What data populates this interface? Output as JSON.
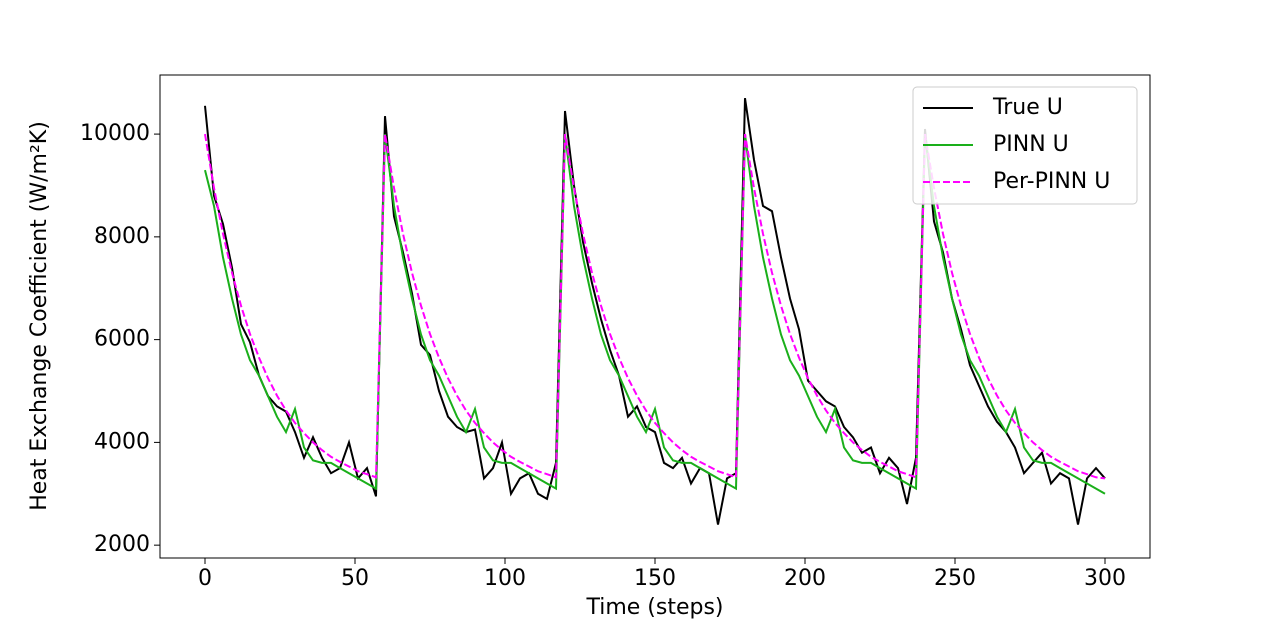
{
  "chart_data": {
    "type": "line",
    "x_label": "Time (steps)",
    "y_label": "Heat Exchange Coefficient (W/m²K)",
    "x": [
      0,
      3,
      6,
      9,
      12,
      15,
      18,
      21,
      24,
      27,
      30,
      33,
      36,
      39,
      42,
      45,
      48,
      51,
      54,
      57,
      60,
      63,
      66,
      69,
      72,
      75,
      78,
      81,
      84,
      87,
      90,
      93,
      96,
      99,
      102,
      105,
      108,
      111,
      114,
      117,
      120,
      123,
      126,
      129,
      132,
      135,
      138,
      141,
      144,
      147,
      150,
      153,
      156,
      159,
      162,
      165,
      168,
      171,
      174,
      177,
      180,
      183,
      186,
      189,
      192,
      195,
      198,
      201,
      204,
      207,
      210,
      213,
      216,
      219,
      222,
      225,
      228,
      231,
      234,
      237,
      240,
      243,
      246,
      249,
      252,
      255,
      258,
      261,
      264,
      267,
      270,
      273,
      276,
      279,
      282,
      285,
      288,
      291,
      294,
      297,
      300
    ],
    "series": [
      {
        "name": "True U",
        "color": "#000000",
        "dashed": false,
        "values": [
          10550,
          8800,
          8250,
          7400,
          6300,
          5950,
          5300,
          4900,
          4700,
          4600,
          4200,
          3700,
          4100,
          3700,
          3400,
          3500,
          4000,
          3300,
          3500,
          2950,
          10350,
          8400,
          7700,
          6900,
          5900,
          5700,
          5000,
          4500,
          4300,
          4200,
          4250,
          3300,
          3500,
          4000,
          3000,
          3300,
          3400,
          3000,
          2900,
          3600,
          10450,
          9000,
          7900,
          7100,
          6400,
          5800,
          5300,
          4500,
          4700,
          4300,
          4200,
          3600,
          3500,
          3700,
          3200,
          3500,
          3400,
          2400,
          3300,
          3400,
          10700,
          9500,
          8600,
          8500,
          7600,
          6800,
          6200,
          5200,
          5000,
          4800,
          4700,
          4300,
          4100,
          3800,
          3900,
          3400,
          3700,
          3500,
          2800,
          3700,
          10100,
          8300,
          7700,
          6800,
          6200,
          5500,
          5100,
          4700,
          4400,
          4200,
          3900,
          3400,
          3600,
          3800,
          3200,
          3400,
          3300,
          2400,
          3300,
          3500,
          3300
        ]
      },
      {
        "name": "PINN U",
        "color": "#1aaf1a",
        "dashed": false,
        "values": [
          9300,
          8600,
          7600,
          6800,
          6100,
          5600,
          5300,
          4900,
          4500,
          4200,
          4650,
          3900,
          3650,
          3600,
          3600,
          3500,
          3400,
          3300,
          3200,
          3100,
          10000,
          8600,
          7600,
          6800,
          6100,
          5600,
          5300,
          4900,
          4500,
          4200,
          4650,
          3900,
          3650,
          3600,
          3600,
          3500,
          3400,
          3300,
          3200,
          3100,
          10000,
          8600,
          7600,
          6800,
          6100,
          5600,
          5300,
          4900,
          4500,
          4200,
          4650,
          3900,
          3650,
          3600,
          3600,
          3500,
          3400,
          3300,
          3200,
          3100,
          10000,
          8600,
          7600,
          6800,
          6100,
          5600,
          5300,
          4900,
          4500,
          4200,
          4650,
          3900,
          3650,
          3600,
          3600,
          3500,
          3400,
          3300,
          3200,
          3100,
          10000,
          8600,
          7600,
          6800,
          6100,
          5600,
          5300,
          4900,
          4500,
          4200,
          4650,
          3900,
          3650,
          3600,
          3600,
          3500,
          3400,
          3300,
          3200,
          3100,
          3000
        ]
      },
      {
        "name": "Per-PINN U",
        "color": "#ff00ff",
        "dashed": true,
        "values": [
          10000,
          8950,
          8060,
          7300,
          6660,
          6110,
          5650,
          5250,
          4910,
          4620,
          4380,
          4180,
          4000,
          3850,
          3720,
          3620,
          3530,
          3440,
          3380,
          3320,
          10000,
          8950,
          8060,
          7300,
          6660,
          6110,
          5650,
          5250,
          4910,
          4620,
          4380,
          4180,
          4000,
          3850,
          3720,
          3620,
          3530,
          3440,
          3380,
          3320,
          10000,
          8950,
          8060,
          7300,
          6660,
          6110,
          5650,
          5250,
          4910,
          4620,
          4380,
          4180,
          4000,
          3850,
          3720,
          3620,
          3530,
          3440,
          3380,
          3320,
          10000,
          8950,
          8060,
          7300,
          6660,
          6110,
          5650,
          5250,
          4910,
          4620,
          4380,
          4180,
          4000,
          3850,
          3720,
          3620,
          3530,
          3440,
          3380,
          3320,
          10000,
          8950,
          8060,
          7300,
          6660,
          6110,
          5650,
          5250,
          4910,
          4620,
          4380,
          4180,
          4000,
          3850,
          3720,
          3620,
          3530,
          3440,
          3380,
          3320,
          3300
        ]
      }
    ],
    "xlim": [
      -15,
      315
    ],
    "ylim": [
      1750,
      11150
    ],
    "xticks": [
      0,
      50,
      100,
      150,
      200,
      250,
      300
    ],
    "yticks": [
      2000,
      4000,
      6000,
      8000,
      10000
    ],
    "legend": "upper right"
  }
}
